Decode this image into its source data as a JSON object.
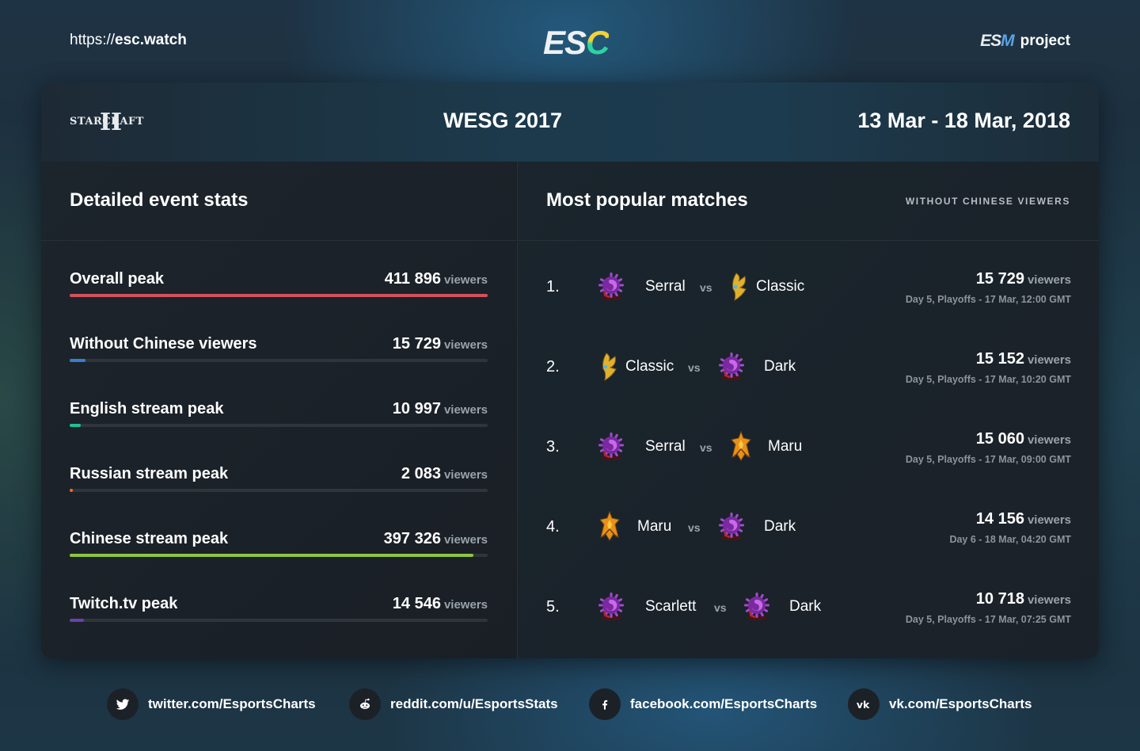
{
  "header": {
    "site_url_proto": "https://",
    "site_url_host": "esc.watch",
    "logo": {
      "e": "E",
      "s": "S",
      "c": "C"
    },
    "esm_mark": {
      "es": "ES",
      "m": "M"
    },
    "esm_suffix": "project"
  },
  "event": {
    "game_logo_word": "STARCRAFT",
    "game_logo_roman": "II",
    "title": "WESG 2017",
    "dates": "13 Mar - 18 Mar, 2018"
  },
  "stats_panel": {
    "title": "Detailed event stats",
    "unit": "viewers",
    "items": [
      {
        "label": "Overall peak",
        "value": "411 896",
        "pct": 100,
        "color": "#d0525c"
      },
      {
        "label": "Without Chinese viewers",
        "value": "15 729",
        "pct": 3.8,
        "color": "#3a7ec8"
      },
      {
        "label": "English stream peak",
        "value": "10 997",
        "pct": 2.7,
        "color": "#1fbf9a"
      },
      {
        "label": "Russian stream peak",
        "value": "2 083",
        "pct": 0.6,
        "color": "#f06a2a"
      },
      {
        "label": "Chinese stream peak",
        "value": "397 326",
        "pct": 96.5,
        "color": "#8dc63f"
      },
      {
        "label": "Twitch.tv peak",
        "value": "14 546",
        "pct": 3.5,
        "color": "#6a40b0"
      }
    ]
  },
  "matches_panel": {
    "title": "Most popular matches",
    "note": "WITHOUT CHINESE VIEWERS",
    "vs_label": "vs",
    "unit": "viewers",
    "items": [
      {
        "rank": "1.",
        "p1": "Serral",
        "r1": "zerg",
        "p2": "Classic",
        "r2": "protoss",
        "viewers": "15 729",
        "when": "Day 5, Playoffs - 17 Mar, 12:00 GMT"
      },
      {
        "rank": "2.",
        "p1": "Classic",
        "r1": "protoss",
        "p2": "Dark",
        "r2": "zerg",
        "viewers": "15 152",
        "when": "Day 5, Playoffs - 17 Mar, 10:20 GMT"
      },
      {
        "rank": "3.",
        "p1": "Serral",
        "r1": "zerg",
        "p2": "Maru",
        "r2": "terran",
        "viewers": "15 060",
        "when": "Day 5, Playoffs - 17 Mar, 09:00 GMT"
      },
      {
        "rank": "4.",
        "p1": "Maru",
        "r1": "terran",
        "p2": "Dark",
        "r2": "zerg",
        "viewers": "14 156",
        "when": "Day 6 - 18 Mar, 04:20 GMT"
      },
      {
        "rank": "5.",
        "p1": "Scarlett",
        "r1": "zerg",
        "p2": "Dark",
        "r2": "zerg",
        "viewers": "10 718",
        "when": "Day 5, Playoffs - 17 Mar, 07:25 GMT"
      }
    ]
  },
  "footer": {
    "socials": [
      {
        "icon": "twitter-icon",
        "text": "twitter.com/EsportsCharts"
      },
      {
        "icon": "reddit-icon",
        "text": "reddit.com/u/EsportsStats"
      },
      {
        "icon": "facebook-icon",
        "text": "facebook.com/EsportsCharts"
      },
      {
        "icon": "vk-icon",
        "text": "vk.com/EsportsCharts"
      }
    ]
  }
}
